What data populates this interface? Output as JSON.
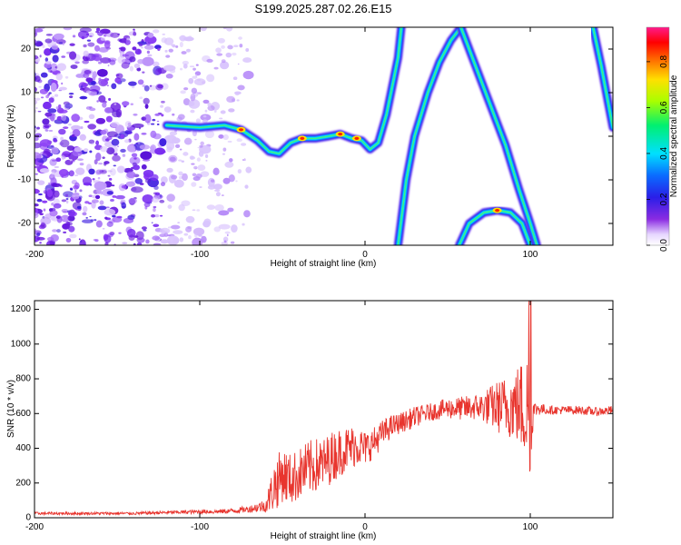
{
  "figure_title": "S199.2025.287.02.26.E15",
  "colors": {
    "snr_line": "#e8352e",
    "axis": "#000000",
    "background": "#ffffff"
  },
  "chart_data": [
    {
      "id": "spectrogram",
      "type": "heatmap",
      "title": "S199.2025.287.02.26.E15",
      "xlabel": "Height of straight line (km)",
      "ylabel": "Frequency (Hz)",
      "xlim": [
        -200,
        150
      ],
      "ylim": [
        -25,
        25
      ],
      "xticks": [
        -200,
        -100,
        0,
        100
      ],
      "yticks": [
        -20,
        -10,
        0,
        10,
        20
      ],
      "colorbar": {
        "label": "Normalized spectral amplitude",
        "range": [
          0,
          0.95
        ],
        "ticks": [
          "0.0",
          "0.2",
          "0.4",
          "0.6",
          "0.8"
        ],
        "colormap": "rainbow (white-purple-blue-cyan-green-yellow-red-magenta)"
      },
      "features": {
        "noise_region_km": [
          -200,
          -90
        ],
        "main_trace": [
          [
            -120,
            2.5
          ],
          [
            -100,
            2
          ],
          [
            -85,
            2.5
          ],
          [
            -75,
            1.5
          ],
          [
            -65,
            -1
          ],
          [
            -58,
            -3.5
          ],
          [
            -52,
            -4
          ],
          [
            -45,
            -1.5
          ],
          [
            -38,
            -0.5
          ],
          [
            -30,
            -0.5
          ],
          [
            -22,
            0
          ],
          [
            -15,
            0.5
          ],
          [
            -8,
            -0.5
          ],
          [
            -2,
            -1
          ],
          [
            3,
            -3
          ],
          [
            8,
            -1.5
          ],
          [
            13,
            5
          ],
          [
            20,
            18
          ],
          [
            22,
            25
          ]
        ],
        "descending_arc": [
          [
            20,
            -25
          ],
          [
            25,
            -10
          ],
          [
            30,
            0
          ],
          [
            38,
            10
          ],
          [
            45,
            17
          ],
          [
            52,
            22
          ],
          [
            58,
            25
          ]
        ],
        "inner_parabola": [
          [
            58,
            25
          ],
          [
            65,
            18
          ],
          [
            75,
            8
          ],
          [
            85,
            -2
          ],
          [
            93,
            -12
          ],
          [
            100,
            -20
          ],
          [
            104,
            -25
          ]
        ],
        "lower_arch": [
          [
            57,
            -25
          ],
          [
            63,
            -20
          ],
          [
            72,
            -17.5
          ],
          [
            80,
            -17
          ],
          [
            88,
            -17.5
          ],
          [
            95,
            -20
          ],
          [
            100,
            -25
          ]
        ],
        "right_edge_curve": [
          [
            138,
            25
          ],
          [
            143,
            16
          ],
          [
            147,
            8
          ],
          [
            150,
            2
          ]
        ],
        "intense_points_hz": [
          [
            -75,
            1.5
          ],
          [
            -38,
            -0.5
          ],
          [
            -15,
            0.5
          ],
          [
            -5,
            -0.5
          ],
          [
            80,
            -17
          ]
        ]
      }
    },
    {
      "id": "snr",
      "type": "line",
      "xlabel": "Height of straight line (km)",
      "ylabel": "SNR (10 * v/v)",
      "xlim": [
        -200,
        150
      ],
      "ylim": [
        0,
        1250
      ],
      "xticks": [
        -200,
        -100,
        0,
        100
      ],
      "yticks": [
        0,
        200,
        400,
        600,
        800,
        1000,
        1200
      ],
      "series": [
        {
          "name": "SNR",
          "x": [
            -200,
            -180,
            -160,
            -140,
            -120,
            -100,
            -90,
            -80,
            -70,
            -60,
            -55,
            -50,
            -45,
            -40,
            -35,
            -30,
            -25,
            -20,
            -15,
            -10,
            -5,
            0,
            5,
            10,
            15,
            20,
            25,
            30,
            40,
            50,
            60,
            70,
            80,
            85,
            90,
            95,
            100,
            102,
            105,
            110,
            120,
            130,
            140,
            150
          ],
          "y": [
            25,
            25,
            25,
            25,
            30,
            35,
            35,
            40,
            50,
            70,
            180,
            250,
            220,
            250,
            280,
            300,
            310,
            350,
            380,
            400,
            420,
            400,
            430,
            480,
            520,
            540,
            560,
            580,
            610,
            630,
            630,
            640,
            640,
            640,
            650,
            640,
            620,
            620,
            630,
            620,
            620,
            620,
            610,
            620
          ],
          "spread": [
            8,
            8,
            8,
            8,
            10,
            12,
            12,
            15,
            20,
            40,
            150,
            160,
            150,
            150,
            160,
            160,
            150,
            150,
            140,
            130,
            120,
            100,
            90,
            80,
            70,
            60,
            60,
            60,
            50,
            60,
            70,
            80,
            150,
            180,
            200,
            280,
            380,
            50,
            40,
            25,
            25,
            25,
            25,
            25
          ]
        }
      ]
    }
  ]
}
